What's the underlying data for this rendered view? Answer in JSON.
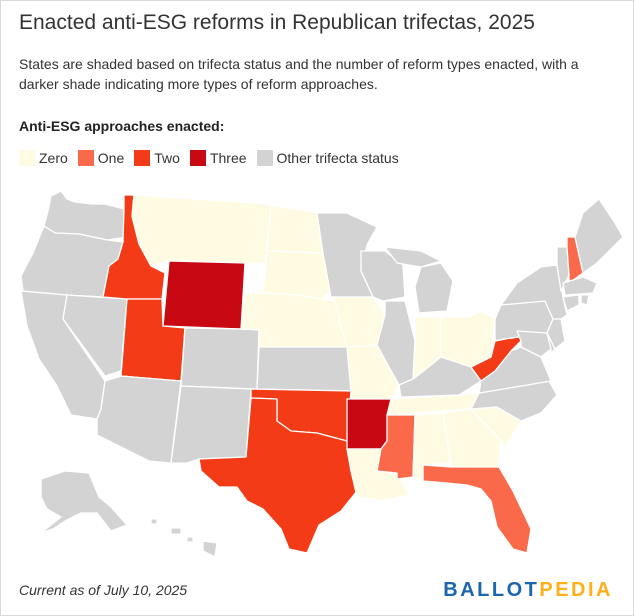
{
  "header": {
    "title": "Enacted anti-ESG reforms in Republican trifectas, 2025",
    "subtitle": "States are shaded based on trifecta status and the number of reform types enacted, with a darker shade indicating more types of reform approaches."
  },
  "legend": {
    "title": "Anti-ESG approaches enacted:",
    "items": [
      {
        "label": "Zero",
        "color": "#fffbe3"
      },
      {
        "label": "One",
        "color": "#fa6a4a"
      },
      {
        "label": "Two",
        "color": "#f33b18"
      },
      {
        "label": "Three",
        "color": "#c80812"
      },
      {
        "label": "Other trifecta status",
        "color": "#d3d3d3"
      }
    ]
  },
  "map": {
    "categories": {
      "zero": "#fffbe3",
      "one": "#fa6a4a",
      "two": "#f33b18",
      "three": "#c80812",
      "other": "#d3d3d3"
    },
    "states": {
      "WA": "other",
      "OR": "other",
      "CA": "other",
      "NV": "other",
      "ID": "two",
      "MT": "zero",
      "WY": "three",
      "UT": "two",
      "AZ": "other",
      "CO": "other",
      "NM": "other",
      "ND": "zero",
      "SD": "zero",
      "NE": "zero",
      "KS": "other",
      "OK": "two",
      "TX": "two",
      "MN": "other",
      "IA": "zero",
      "MO": "zero",
      "AR": "three",
      "LA": "zero",
      "WI": "other",
      "IL": "other",
      "MI": "other",
      "IN": "zero",
      "OH": "zero",
      "KY": "other",
      "TN": "zero",
      "MS": "one",
      "AL": "zero",
      "GA": "zero",
      "FL": "one",
      "SC": "zero",
      "NC": "other",
      "VA": "other",
      "WV": "two",
      "PA": "other",
      "NY": "other",
      "NJ": "other",
      "DE": "other",
      "MD": "other",
      "VT": "other",
      "NH": "one",
      "ME": "other",
      "MA": "other",
      "CT": "other",
      "RI": "other",
      "AK": "other",
      "HI": "other"
    }
  },
  "footer": {
    "note": "Current as of July 10, 2025",
    "logo_part1": "BALLOT",
    "logo_part2": "PEDIA"
  }
}
